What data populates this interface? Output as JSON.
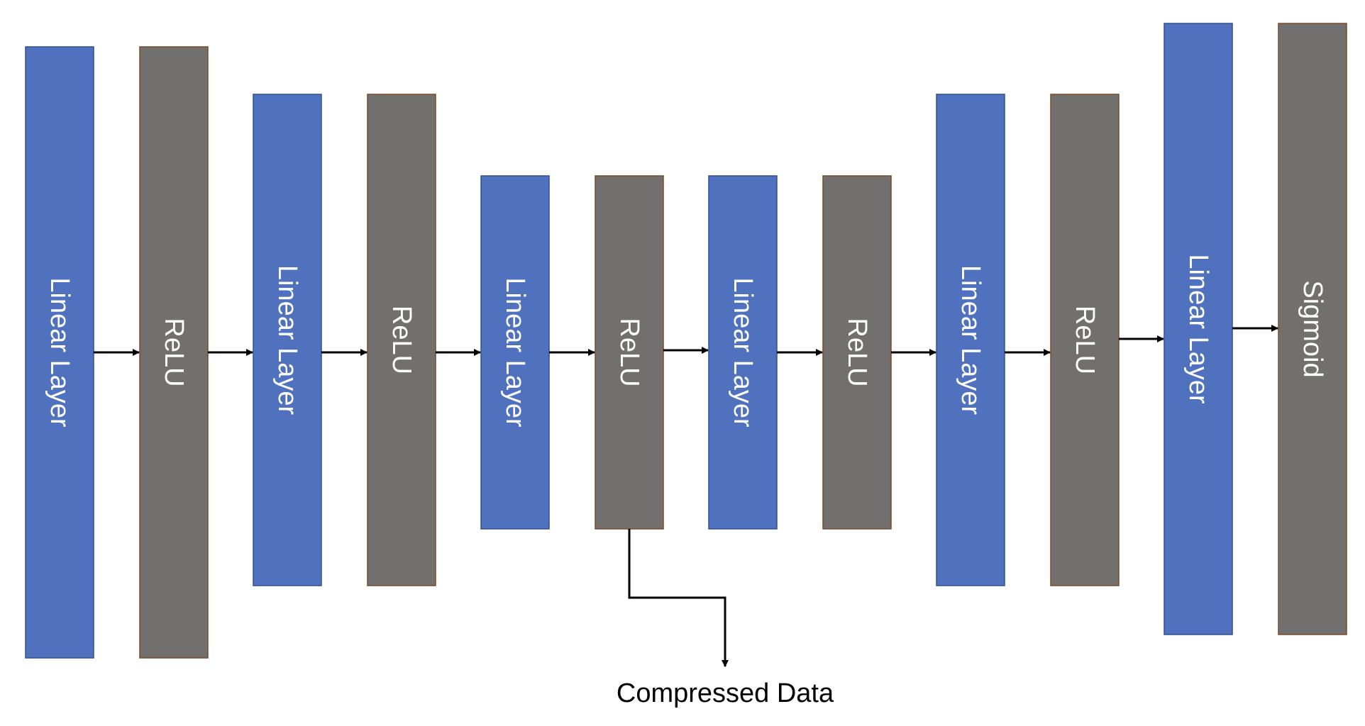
{
  "colors": {
    "linear": "#4f71be",
    "linear_border": "#33508f",
    "activation": "#72706f",
    "activation_border": "#7a4b2a",
    "arrow": "#000000",
    "background": "#ffffff"
  },
  "layers": [
    {
      "label": "Linear Layer",
      "kind": "linear"
    },
    {
      "label": "ReLU",
      "kind": "activation"
    },
    {
      "label": "Linear Layer",
      "kind": "linear"
    },
    {
      "label": "ReLU",
      "kind": "activation"
    },
    {
      "label": "Linear Layer",
      "kind": "linear"
    },
    {
      "label": "ReLU",
      "kind": "activation"
    },
    {
      "label": "Linear Layer",
      "kind": "linear"
    },
    {
      "label": "ReLU",
      "kind": "activation"
    },
    {
      "label": "Linear Layer",
      "kind": "linear"
    },
    {
      "label": "ReLU",
      "kind": "activation"
    },
    {
      "label": "Linear Layer",
      "kind": "linear"
    },
    {
      "label": "Sigmoid",
      "kind": "activation"
    }
  ],
  "bottleneck": {
    "layer_index": 5,
    "label": "Compressed Data"
  }
}
